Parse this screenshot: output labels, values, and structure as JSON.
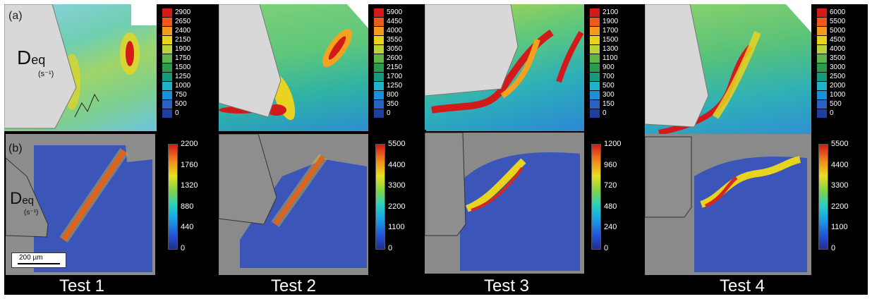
{
  "figure": {
    "panel_a_label": "(a)",
    "panel_b_label": "(b)",
    "quantity_main": "D",
    "quantity_sub": "eq",
    "units": "(s⁻¹)",
    "scale_bar": "200 µm",
    "tests": [
      {
        "label": "Test 1",
        "sim_scale": [
          "2900",
          "2650",
          "2400",
          "2150",
          "1900",
          "1750",
          "1500",
          "1250",
          "1000",
          "750",
          "500",
          "0"
        ],
        "exp_scale": [
          "2200",
          "1760",
          "1320",
          "880",
          "440",
          "0"
        ]
      },
      {
        "label": "Test 2",
        "sim_scale": [
          "5900",
          "4450",
          "4000",
          "3550",
          "3050",
          "2600",
          "2150",
          "1700",
          "1250",
          "800",
          "350",
          "0"
        ],
        "exp_scale": [
          "5500",
          "4400",
          "3300",
          "2200",
          "1100",
          "0"
        ]
      },
      {
        "label": "Test 3",
        "sim_scale": [
          "2100",
          "1900",
          "1700",
          "1500",
          "1300",
          "1100",
          "900",
          "700",
          "500",
          "300",
          "150",
          "0"
        ],
        "exp_scale": [
          "1200",
          "960",
          "720",
          "480",
          "240",
          "0"
        ]
      },
      {
        "label": "Test 4",
        "sim_scale": [
          "6000",
          "5500",
          "5000",
          "4500",
          "4000",
          "3500",
          "3000",
          "2500",
          "2000",
          "1000",
          "500",
          "0"
        ],
        "exp_scale": [
          "5500",
          "4400",
          "3300",
          "2200",
          "1100",
          "0"
        ]
      }
    ],
    "colors": {
      "swatches": [
        "#d51a1a",
        "#ee5a1e",
        "#f39a1f",
        "#e9d21c",
        "#b9d23a",
        "#5fb548",
        "#2a9a4c",
        "#169a7e",
        "#1fb2c8",
        "#1d8fd6",
        "#2a62c2",
        "#1f3ea1"
      ]
    }
  }
}
